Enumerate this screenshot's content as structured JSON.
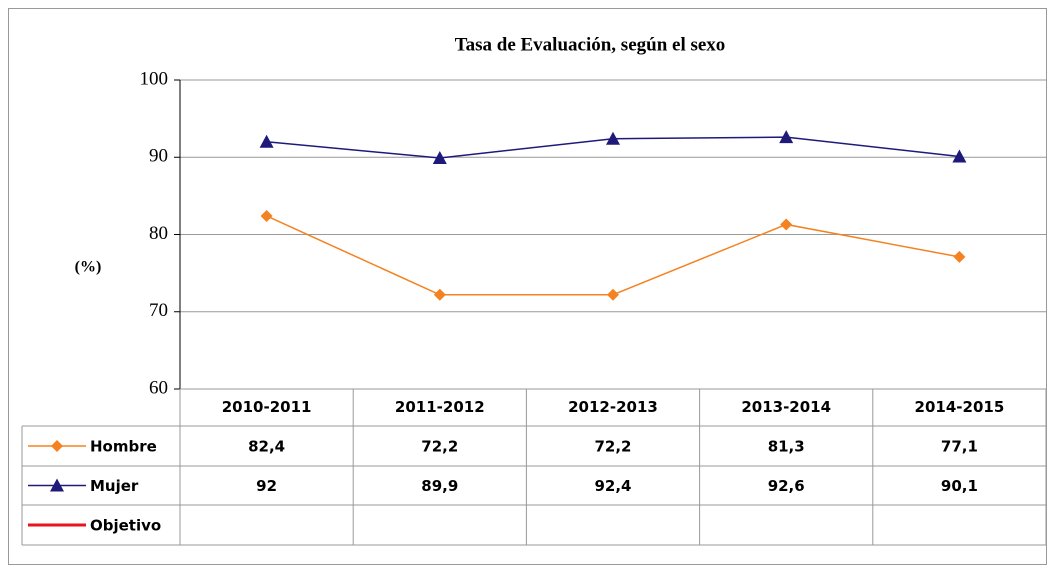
{
  "chart_data": {
    "type": "line",
    "title": "Tasa de Evaluación, según el sexo",
    "y_label": "(%)",
    "categories": [
      "2010-2011",
      "2011-2012",
      "2012-2013",
      "2013-2014",
      "2014-2015"
    ],
    "series": [
      {
        "name": "Hombre",
        "color": "#f58220",
        "marker": "diamond",
        "values": [
          82.4,
          72.2,
          72.2,
          81.3,
          77.1
        ],
        "value_labels": [
          "82,4",
          "72,2",
          "72,2",
          "81,3",
          "77,1"
        ]
      },
      {
        "name": "Mujer",
        "color": "#1f1a7a",
        "marker": "triangle",
        "values": [
          92,
          89.9,
          92.4,
          92.6,
          90.1
        ],
        "value_labels": [
          "92",
          "89,9",
          "92,4",
          "92,6",
          "90,1"
        ]
      },
      {
        "name": "Objetivo",
        "color": "#e8141c",
        "marker": "none",
        "values": [
          null,
          null,
          null,
          null,
          null
        ]
      }
    ],
    "ylim": [
      60,
      100
    ],
    "yticks": [
      60,
      70,
      80,
      90,
      100
    ],
    "grid": true
  }
}
